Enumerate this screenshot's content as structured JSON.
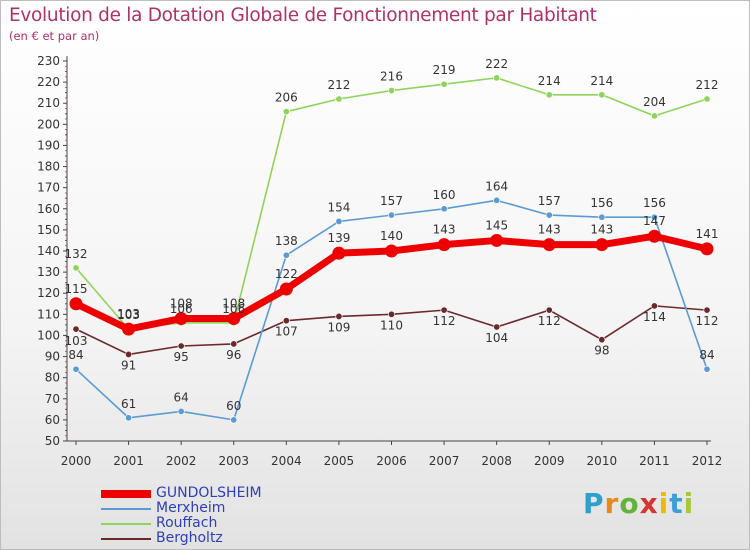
{
  "title": "Evolution de la Dotation Globale de Fonctionnement par Habitant",
  "subtitle": "(en € et par an)",
  "logo_text": "Proxiti",
  "chart_data": {
    "type": "line",
    "title": "Evolution de la Dotation Globale de Fonctionnement par Habitant",
    "subtitle": "(en € et par an)",
    "x": [
      "2000",
      "2001",
      "2002",
      "2003",
      "2004",
      "2005",
      "2006",
      "2007",
      "2008",
      "2009",
      "2010",
      "2011",
      "2012"
    ],
    "ylim": [
      50,
      230
    ],
    "ytick_step": 10,
    "grid": false,
    "legend_position": "bottom-left",
    "series": [
      {
        "name": "GUNDOLSHEIM",
        "color": "#ee0000",
        "values": [
          115,
          103,
          108,
          108,
          122,
          139,
          140,
          143,
          145,
          143,
          143,
          147,
          141
        ]
      },
      {
        "name": "Merxheim",
        "color": "#5b9bd5",
        "values": [
          84,
          61,
          64,
          60,
          138,
          154,
          157,
          160,
          164,
          157,
          156,
          156,
          84
        ]
      },
      {
        "name": "Rouffach",
        "color": "#8fd45a",
        "values": [
          132,
          103,
          106,
          106,
          206,
          212,
          216,
          219,
          222,
          214,
          214,
          204,
          212
        ]
      },
      {
        "name": "Bergholtz",
        "color": "#6b2a2a",
        "values": [
          103,
          91,
          95,
          96,
          107,
          109,
          110,
          112,
          104,
          112,
          98,
          114,
          112
        ]
      }
    ]
  }
}
